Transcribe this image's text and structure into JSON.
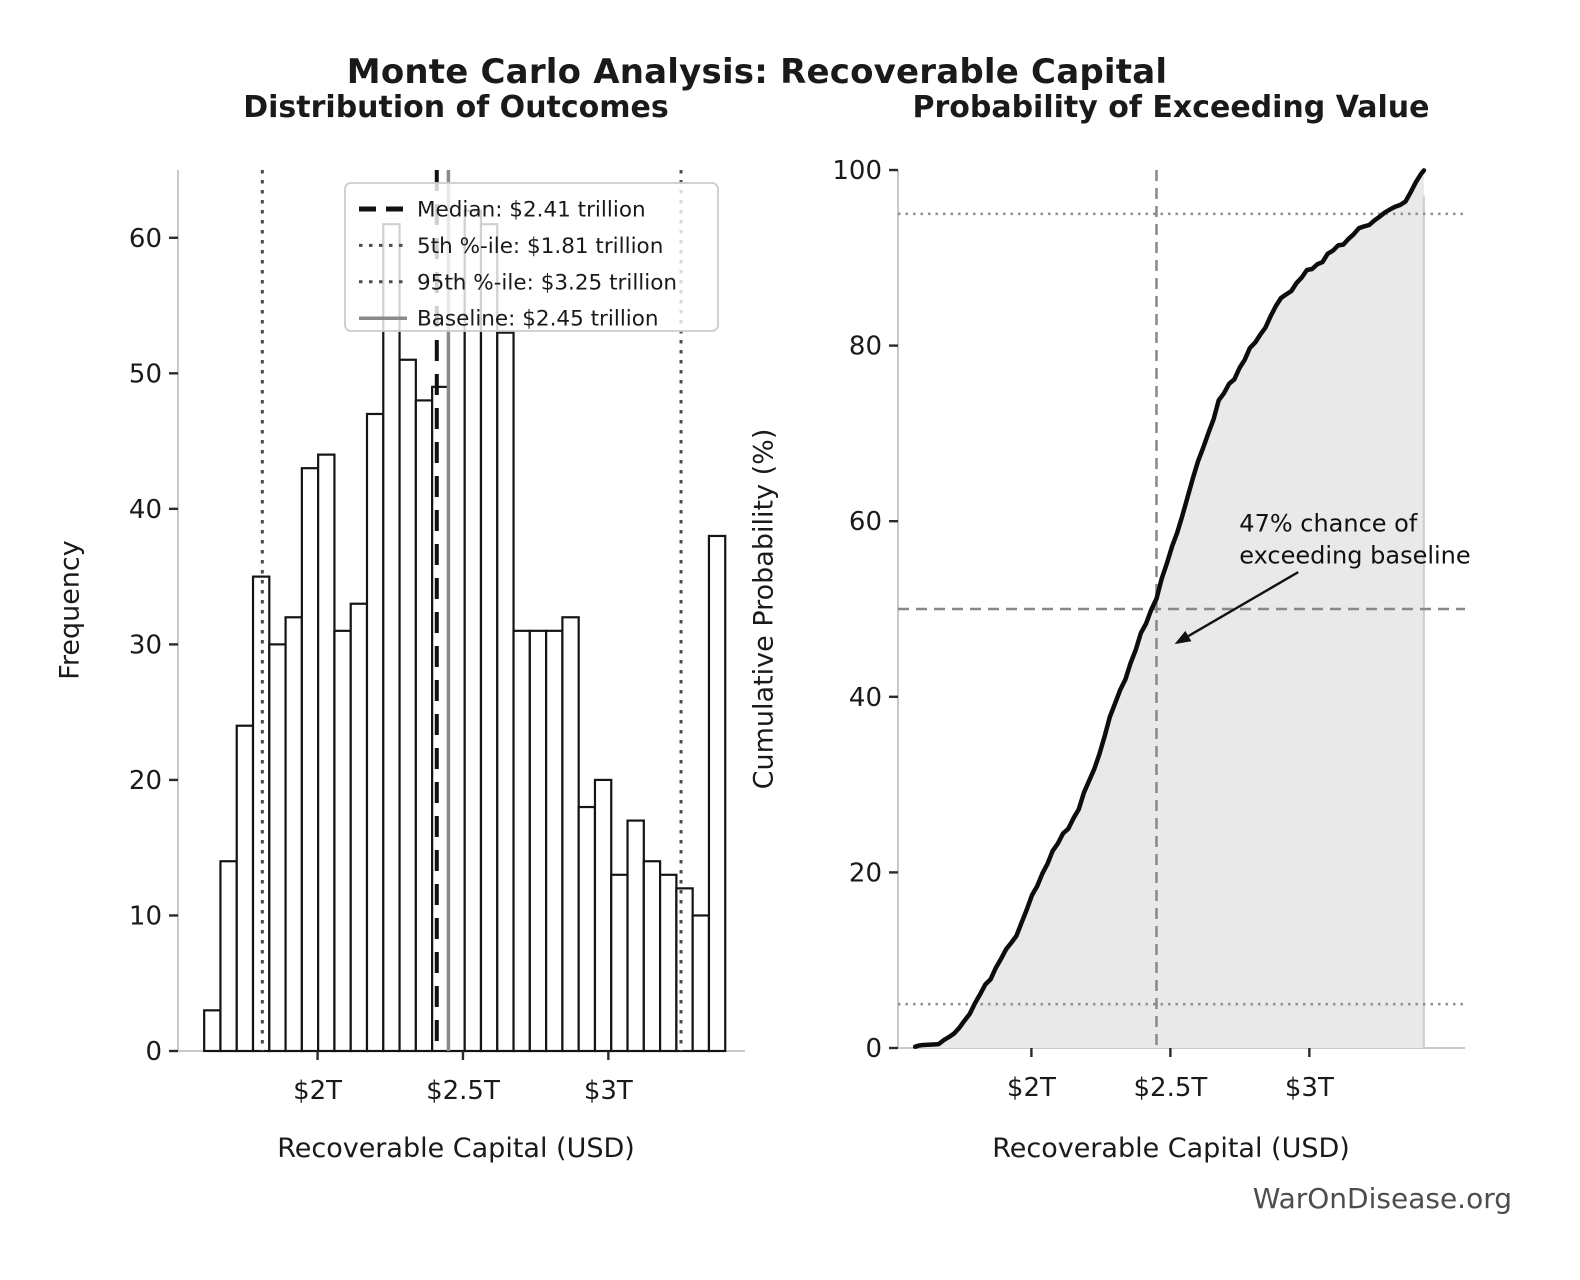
{
  "header": {
    "suptitle": "Monte Carlo Analysis: Recoverable Capital"
  },
  "watermark": "WarOnDisease.org",
  "colors": {
    "text": "#1a1a1a",
    "spine": "#c9c9c9",
    "tick": "#2b2b2b",
    "bar_fill": "#ffffff",
    "bar_edge": "#141414",
    "median": "#111111",
    "percentile": "#4d4d4d",
    "baseline": "#8a8a8a",
    "guide_dashed": "#888888",
    "guide_dotted": "#8f8f8f",
    "curve": "#0d0d0d",
    "area_fill": "#e9e9e9",
    "area_edge": "#cccccc",
    "legend_border": "#cccccc",
    "annotation": "#111111"
  },
  "chart_data": [
    {
      "type": "bar",
      "title": "Distribution of Outcomes",
      "xlabel": "Recoverable Capital (USD)",
      "ylabel": "Frequency",
      "bin_start_trillion": 1.61,
      "bin_width_trillion": 0.056,
      "frequencies": [
        3,
        14,
        24,
        35,
        30,
        32,
        43,
        44,
        31,
        33,
        47,
        61,
        51,
        48,
        49,
        57,
        62,
        61,
        53,
        31,
        31,
        31,
        32,
        18,
        20,
        13,
        17,
        14,
        13,
        12,
        10,
        38
      ],
      "xlim": [
        1.52,
        3.47
      ],
      "ylim": [
        0,
        65
      ],
      "xticks": [
        {
          "v": 2.0,
          "label": "$2T"
        },
        {
          "v": 2.5,
          "label": "$2.5T"
        },
        {
          "v": 3.0,
          "label": "$3T"
        }
      ],
      "yticks": [
        0,
        10,
        20,
        30,
        40,
        50,
        60
      ],
      "grid": false,
      "legend_position": "upper center-right",
      "ref_lines": [
        {
          "name": "median",
          "value": 2.41,
          "style": "dashed",
          "label": "Median: $2.41 trillion"
        },
        {
          "name": "p5",
          "value": 1.81,
          "style": "dotted",
          "label": "5th %-ile: $1.81 trillion"
        },
        {
          "name": "p95",
          "value": 3.25,
          "style": "dotted",
          "label": "95th %-ile: $3.25 trillion"
        },
        {
          "name": "baseline",
          "value": 2.45,
          "style": "solid",
          "label": "Baseline: $2.45 trillion"
        }
      ]
    },
    {
      "type": "line",
      "title": "Probability of Exceeding Value",
      "xlabel": "Recoverable Capital (USD)",
      "ylabel": "Cumulative Probability (%)",
      "xlim": [
        1.52,
        3.56
      ],
      "ylim": [
        0,
        100
      ],
      "xticks": [
        {
          "v": 2.0,
          "label": "$2T"
        },
        {
          "v": 2.5,
          "label": "$2.5T"
        },
        {
          "v": 3.0,
          "label": "$3T"
        }
      ],
      "yticks": [
        0,
        20,
        40,
        60,
        80,
        100
      ],
      "grid": false,
      "area_fill": true,
      "points": [
        [
          1.582,
          0.15
        ],
        [
          1.61,
          0.3
        ],
        [
          1.666,
          0.5
        ],
        [
          1.722,
          1.6
        ],
        [
          1.778,
          3.9
        ],
        [
          1.834,
          7.2
        ],
        [
          1.89,
          10.0
        ],
        [
          1.946,
          13.0
        ],
        [
          2.002,
          17.1
        ],
        [
          2.058,
          21.3
        ],
        [
          2.114,
          24.2
        ],
        [
          2.17,
          27.3
        ],
        [
          2.226,
          31.8
        ],
        [
          2.282,
          37.5
        ],
        [
          2.338,
          42.3
        ],
        [
          2.394,
          46.9
        ],
        [
          2.45,
          51.5
        ],
        [
          2.506,
          56.9
        ],
        [
          2.562,
          62.8
        ],
        [
          2.618,
          68.5
        ],
        [
          2.674,
          73.5
        ],
        [
          2.73,
          76.5
        ],
        [
          2.786,
          79.4
        ],
        [
          2.842,
          82.3
        ],
        [
          2.898,
          85.3
        ],
        [
          2.954,
          87.1
        ],
        [
          3.01,
          88.9
        ],
        [
          3.066,
          90.2
        ],
        [
          3.122,
          91.8
        ],
        [
          3.178,
          93.1
        ],
        [
          3.234,
          94.3
        ],
        [
          3.29,
          95.5
        ],
        [
          3.346,
          96.4
        ],
        [
          3.402,
          99.6
        ],
        [
          3.412,
          100.0
        ]
      ],
      "h_guides": [
        {
          "name": "p5-line",
          "value": 5,
          "style": "dotted"
        },
        {
          "name": "median-line",
          "value": 50,
          "style": "dashed"
        },
        {
          "name": "p95-line",
          "value": 95,
          "style": "dotted"
        }
      ],
      "v_guides": [
        {
          "name": "baseline-line",
          "value": 2.45,
          "style": "dashed"
        }
      ],
      "annotation": {
        "lines": [
          "47% chance of",
          "exceeding baseline"
        ],
        "text_x": 2.748,
        "text_y_pct": 58.8,
        "line_gap_pct": 3.6,
        "arrow_from": [
          2.96,
          54.2
        ],
        "arrow_to": [
          2.515,
          46.0
        ]
      }
    }
  ]
}
